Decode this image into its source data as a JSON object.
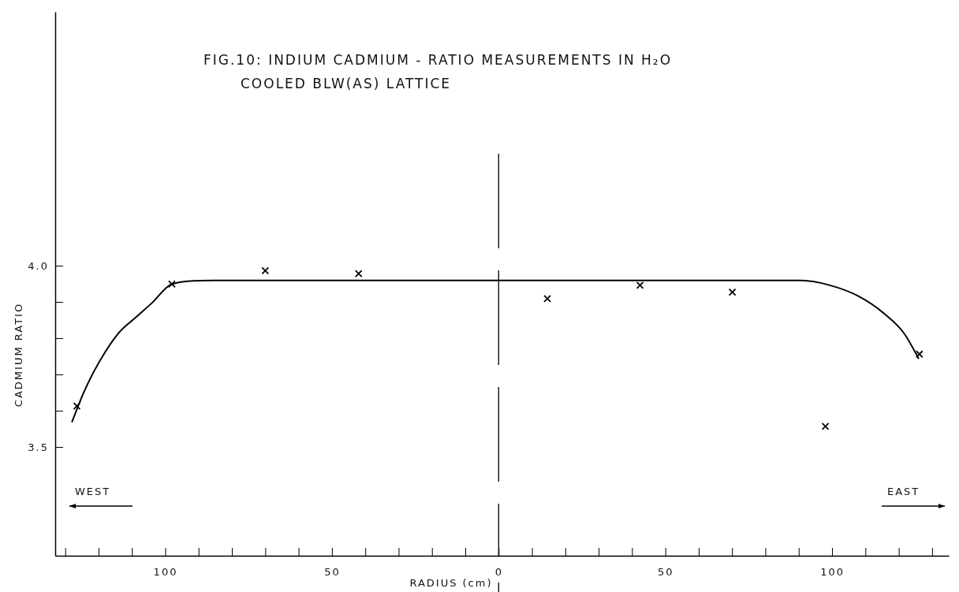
{
  "chart_data": {
    "type": "scatter",
    "title": "FIG.10:  INDIUM CADMIUM - RATIO MEASUREMENTS IN H₂O\nCOOLED BLW(AS) LATTICE",
    "xlabel": "RADIUS (cm)",
    "ylabel": "CADMIUM RATIO",
    "xlim": [
      -133,
      135
    ],
    "xticks": [
      {
        "value": -130,
        "label": null
      },
      {
        "value": -120,
        "label": null
      },
      {
        "value": -110,
        "label": null
      },
      {
        "value": -100,
        "label": "100"
      },
      {
        "value": -90,
        "label": null
      },
      {
        "value": -80,
        "label": null
      },
      {
        "value": -70,
        "label": null
      },
      {
        "value": -60,
        "label": null
      },
      {
        "value": -50,
        "label": "50"
      },
      {
        "value": -40,
        "label": null
      },
      {
        "value": -30,
        "label": null
      },
      {
        "value": -20,
        "label": null
      },
      {
        "value": -10,
        "label": null
      },
      {
        "value": 0,
        "label": "0"
      },
      {
        "value": 10,
        "label": null
      },
      {
        "value": 20,
        "label": null
      },
      {
        "value": 30,
        "label": null
      },
      {
        "value": 40,
        "label": null
      },
      {
        "value": 50,
        "label": "50"
      },
      {
        "value": 60,
        "label": null
      },
      {
        "value": 70,
        "label": null
      },
      {
        "value": 80,
        "label": null
      },
      {
        "value": 90,
        "label": null
      },
      {
        "value": 100,
        "label": "100"
      },
      {
        "value": 110,
        "label": null
      },
      {
        "value": 120,
        "label": null
      },
      {
        "value": 130,
        "label": null
      }
    ],
    "ylim": [
      3.2,
      4.7
    ],
    "yticks": [
      3.5,
      {
        "value": 3.6,
        "label": null
      },
      {
        "value": 3.7,
        "label": null
      },
      {
        "value": 3.8,
        "label": null
      },
      {
        "value": 3.9,
        "label": null
      },
      {
        "value": 4,
        "label": "4.0"
      }
    ],
    "grid": false,
    "series": [
      {
        "type": "line",
        "marker": "none",
        "line_style": "solid",
        "color": "#000000",
        "x": [
          -128,
          -124.5,
          -118,
          -113.8,
          -109,
          -104,
          -98,
          -91.4,
          -85,
          0,
          85,
          90.7,
          99.3,
          107.9,
          115.6,
          121.7,
          126
        ],
        "values": [
          3.568,
          3.649,
          3.762,
          3.816,
          3.856,
          3.897,
          3.949,
          3.958,
          3.959,
          3.959,
          3.959,
          3.959,
          3.946,
          3.916,
          3.868,
          3.812,
          3.743
        ]
      },
      {
        "marker": "cross",
        "color": "#000000",
        "x": [
          -126.5,
          -98,
          -70,
          -42,
          14.6,
          42.4,
          70.1,
          98,
          126.2
        ],
        "values": [
          3.613,
          3.949,
          3.986,
          3.978,
          3.909,
          3.946,
          3.927,
          3.557,
          3.756
        ]
      }
    ],
    "ref_lines": [
      {
        "axis": "x",
        "value": 0,
        "line_style": "dashed",
        "color": "#000000"
      }
    ],
    "annotations": [
      "WEST",
      "EAST"
    ]
  }
}
